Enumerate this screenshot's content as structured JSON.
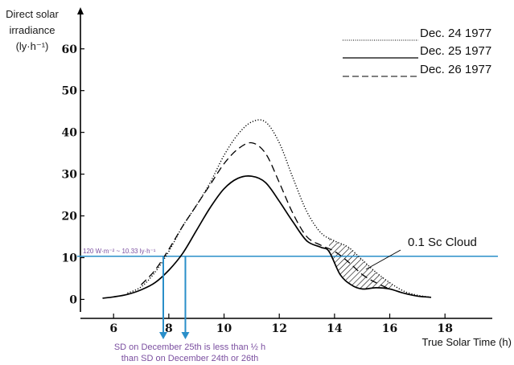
{
  "chart_data": {
    "type": "line",
    "ylabel_lines": [
      "Direct solar",
      "irradiance",
      "(ly·h⁻¹)"
    ],
    "xlabel": "True Solar Time (h)",
    "xlim": [
      4.8,
      19.8
    ],
    "ylim": [
      -3,
      69
    ],
    "x_ticks": [
      6,
      8,
      10,
      12,
      14,
      16,
      18
    ],
    "y_ticks": [
      0,
      10,
      20,
      30,
      40,
      50,
      60
    ],
    "grid": false,
    "legend_position": "top-right",
    "series": [
      {
        "name": "Dec. 24 1977",
        "dash": "dotted",
        "x": [
          6.5,
          7.0,
          7.5,
          8.0,
          8.5,
          9.0,
          9.5,
          10.0,
          10.5,
          11.0,
          11.5,
          12.0,
          12.5,
          13.0,
          13.5,
          14.0,
          14.5,
          15.0,
          15.5,
          16.0,
          16.5,
          17.0,
          17.5
        ],
        "y": [
          1.5,
          3.0,
          6.5,
          11.5,
          17.5,
          22.5,
          28.0,
          34.5,
          39.5,
          42.5,
          42.5,
          37.5,
          29.0,
          21.0,
          16.0,
          14.0,
          12.5,
          9.5,
          6.5,
          4.0,
          2.0,
          1.0,
          0.5
        ]
      },
      {
        "name": "Dec. 25 1977",
        "dash": "solid",
        "x": [
          5.6,
          6.0,
          6.5,
          7.0,
          7.5,
          8.0,
          8.5,
          9.0,
          9.5,
          10.0,
          10.5,
          11.0,
          11.5,
          12.0,
          12.5,
          13.0,
          13.5,
          13.8,
          14.2,
          14.6,
          15.0,
          15.5,
          16.0,
          16.5,
          17.0,
          17.5
        ],
        "y": [
          0.3,
          0.6,
          1.2,
          2.3,
          4.0,
          7.0,
          11.0,
          16.5,
          22.0,
          26.5,
          29.0,
          29.5,
          28.0,
          23.5,
          18.5,
          14.0,
          12.5,
          11.5,
          6.0,
          3.5,
          2.5,
          2.8,
          2.5,
          1.5,
          0.8,
          0.5
        ]
      },
      {
        "name": "Dec. 26 1977",
        "dash": "dashed",
        "x": [
          7.0,
          7.5,
          8.0,
          8.5,
          9.0,
          9.5,
          10.0,
          10.5,
          11.0,
          11.5,
          12.0,
          12.5,
          13.0,
          13.5,
          14.0,
          14.5,
          15.0,
          15.5,
          16.0
        ],
        "y": [
          3.5,
          7.0,
          12.0,
          17.5,
          22.5,
          27.5,
          32.5,
          36.0,
          37.5,
          35.0,
          28.0,
          20.5,
          15.0,
          13.0,
          11.5,
          9.0,
          6.0,
          4.0,
          2.5
        ]
      }
    ],
    "threshold": {
      "y": 10.33,
      "label": "120 W·m⁻² ~ 10.33 ly·h⁻¹",
      "color": "#2a8fc9"
    },
    "markers_x": [
      7.8,
      8.6
    ],
    "shaded_region": {
      "x_start": 13.8,
      "x_end": 16.1,
      "note": "0.1 Sc Cloud"
    },
    "sd_note": [
      "SD on December 25th is less than ½ h",
      "than SD on December 24th or 26th"
    ],
    "colors": {
      "axis": "#000000",
      "accent": "#2a8fc9",
      "note": "#7b4fa0"
    }
  }
}
